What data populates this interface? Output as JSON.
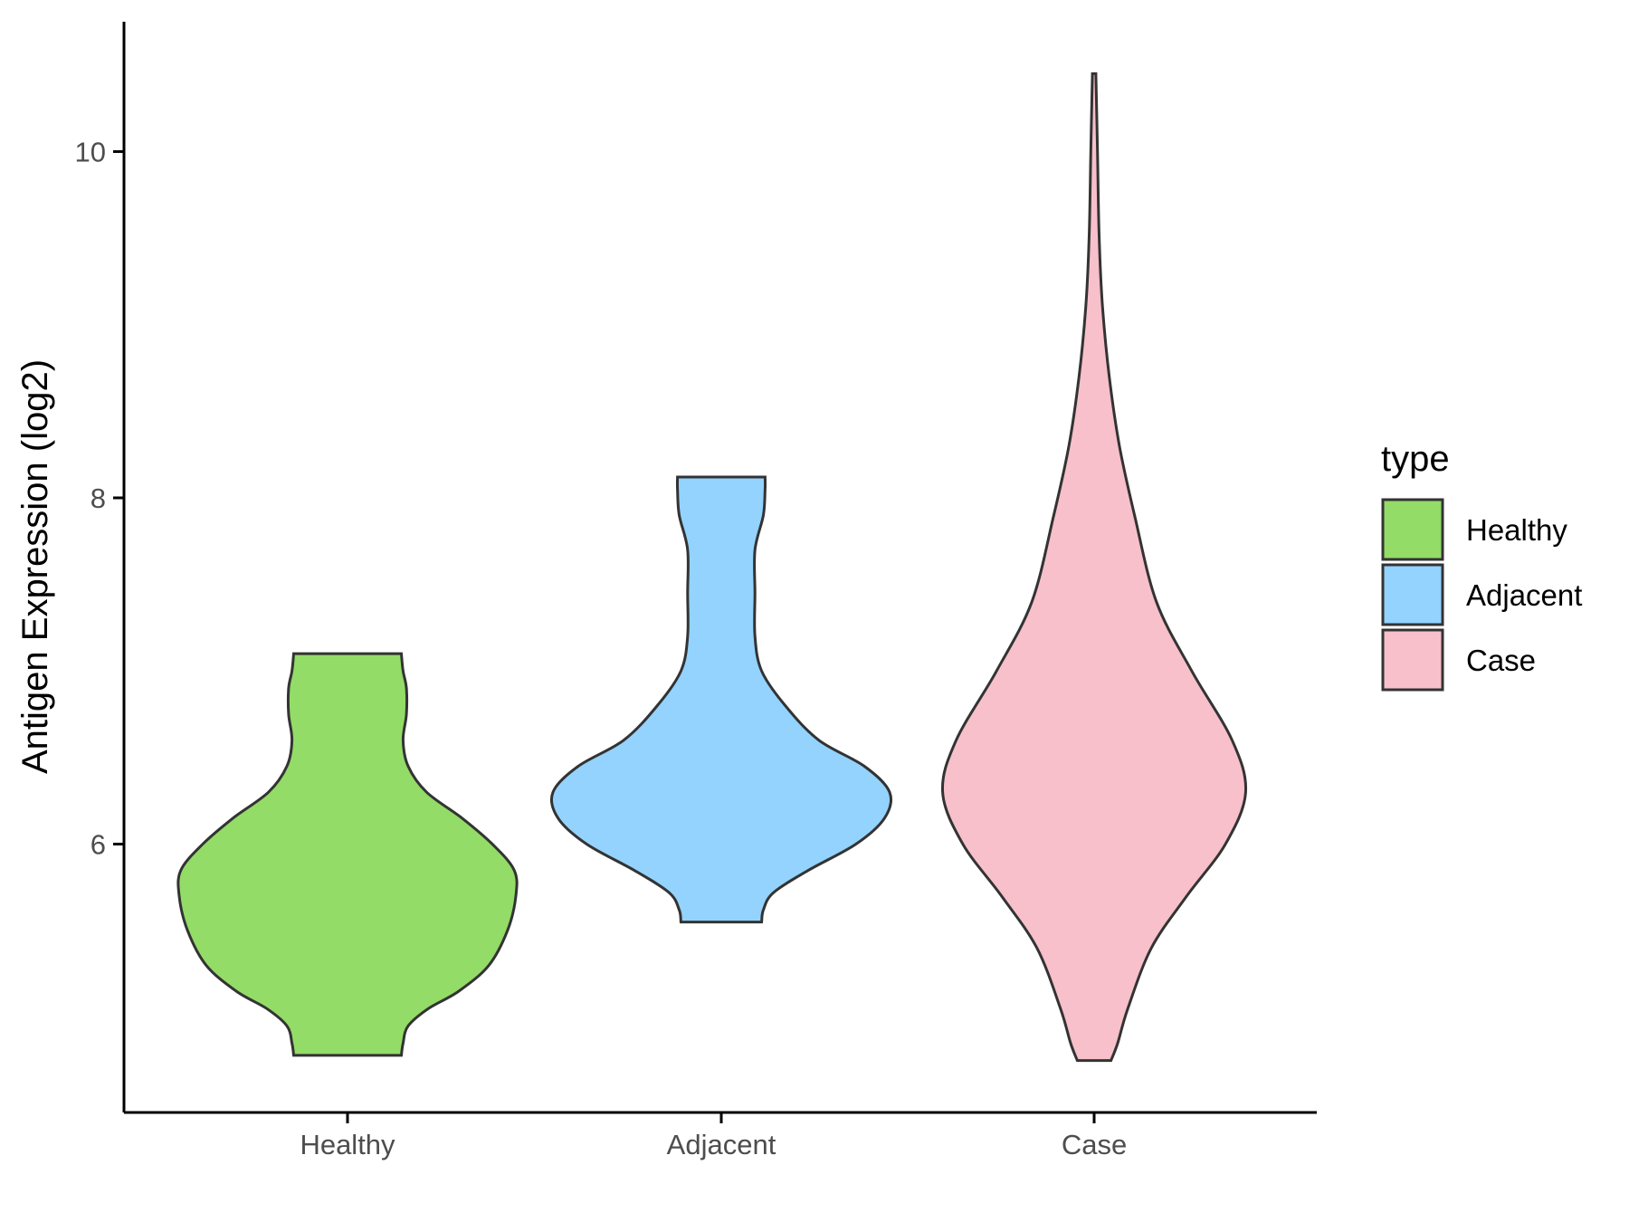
{
  "chart_data": {
    "type": "violin",
    "title": "",
    "xlabel": "",
    "ylabel": "Antigen Expression (log2)",
    "categories": [
      "Healthy",
      "Adjacent",
      "Case"
    ],
    "ylim": [
      4.45,
      10.75
    ],
    "yticks": [
      6,
      8,
      10
    ],
    "grid": false,
    "legend": {
      "title": "type",
      "position": "right",
      "entries": [
        {
          "label": "Healthy",
          "color": "#93DC67"
        },
        {
          "label": "Adjacent",
          "color": "#93D3FE"
        },
        {
          "label": "Case",
          "color": "#F7C0CB"
        }
      ]
    },
    "series": [
      {
        "category": "Healthy",
        "color": "#93DC67",
        "y_min": 4.78,
        "y_max": 7.1,
        "profile": [
          [
            4.78,
            0.32
          ],
          [
            4.85,
            0.33
          ],
          [
            4.95,
            0.36
          ],
          [
            5.05,
            0.48
          ],
          [
            5.15,
            0.66
          ],
          [
            5.3,
            0.84
          ],
          [
            5.5,
            0.95
          ],
          [
            5.7,
            1.0
          ],
          [
            5.85,
            0.99
          ],
          [
            6.0,
            0.86
          ],
          [
            6.15,
            0.68
          ],
          [
            6.3,
            0.47
          ],
          [
            6.45,
            0.36
          ],
          [
            6.6,
            0.33
          ],
          [
            6.75,
            0.35
          ],
          [
            6.9,
            0.35
          ],
          [
            7.0,
            0.33
          ],
          [
            7.1,
            0.32
          ]
        ]
      },
      {
        "category": "Adjacent",
        "color": "#93D3FE",
        "y_min": 5.55,
        "y_max": 8.12,
        "profile": [
          [
            5.55,
            0.24
          ],
          [
            5.62,
            0.25
          ],
          [
            5.72,
            0.31
          ],
          [
            5.85,
            0.52
          ],
          [
            6.0,
            0.8
          ],
          [
            6.15,
            0.97
          ],
          [
            6.3,
            1.0
          ],
          [
            6.45,
            0.85
          ],
          [
            6.6,
            0.58
          ],
          [
            6.8,
            0.38
          ],
          [
            7.0,
            0.24
          ],
          [
            7.2,
            0.2
          ],
          [
            7.45,
            0.2
          ],
          [
            7.7,
            0.2
          ],
          [
            7.9,
            0.25
          ],
          [
            8.05,
            0.26
          ],
          [
            8.12,
            0.26
          ]
        ]
      },
      {
        "category": "Case",
        "color": "#F7C0CB",
        "y_min": 4.75,
        "y_max": 10.45,
        "profile": [
          [
            4.75,
            0.1
          ],
          [
            4.85,
            0.14
          ],
          [
            5.05,
            0.2
          ],
          [
            5.4,
            0.34
          ],
          [
            5.7,
            0.55
          ],
          [
            6.0,
            0.78
          ],
          [
            6.3,
            0.9
          ],
          [
            6.6,
            0.82
          ],
          [
            7.0,
            0.58
          ],
          [
            7.4,
            0.37
          ],
          [
            7.9,
            0.24
          ],
          [
            8.3,
            0.15
          ],
          [
            8.7,
            0.09
          ],
          [
            9.1,
            0.05
          ],
          [
            9.5,
            0.03
          ],
          [
            10.0,
            0.02
          ],
          [
            10.45,
            0.01
          ]
        ]
      }
    ]
  }
}
